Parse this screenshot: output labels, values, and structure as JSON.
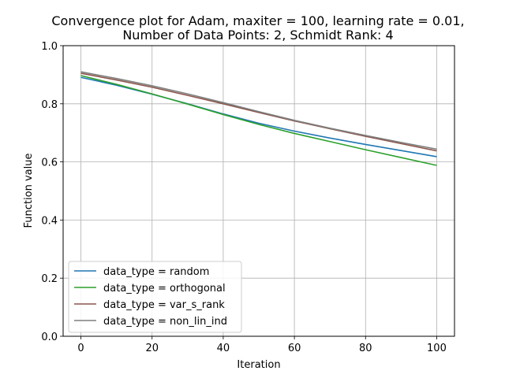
{
  "chart_data": {
    "type": "line",
    "title_line1": "Convergence plot for Adam, maxiter = 100, learning rate = 0.01,",
    "title_line2": "Number of Data Points: 2, Schmidt Rank: 4",
    "xlabel": "Iteration",
    "ylabel": "Function value",
    "xlim": [
      -5,
      105
    ],
    "ylim": [
      0,
      1
    ],
    "xticks": [
      0,
      20,
      40,
      60,
      80,
      100
    ],
    "yticks": [
      0.0,
      0.2,
      0.4,
      0.6,
      0.8,
      1.0
    ],
    "ytick_labels": [
      "0.0",
      "0.2",
      "0.4",
      "0.6",
      "0.8",
      "1.0"
    ],
    "grid": true,
    "legend_position": "lower-left",
    "x": [
      0,
      10,
      20,
      30,
      40,
      50,
      60,
      70,
      80,
      90,
      100
    ],
    "series": [
      {
        "name": "data_type = random",
        "color": "#1f77b4",
        "values": [
          0.891,
          0.864,
          0.833,
          0.8,
          0.765,
          0.733,
          0.706,
          0.682,
          0.66,
          0.639,
          0.618
        ]
      },
      {
        "name": "data_type = orthogonal",
        "color": "#2ca02c",
        "values": [
          0.897,
          0.867,
          0.834,
          0.799,
          0.763,
          0.729,
          0.698,
          0.67,
          0.642,
          0.615,
          0.588
        ]
      },
      {
        "name": "data_type = var_s_rank",
        "color": "#8c564b",
        "values": [
          0.905,
          0.882,
          0.857,
          0.829,
          0.8,
          0.77,
          0.741,
          0.714,
          0.688,
          0.663,
          0.638
        ]
      },
      {
        "name": "data_type = non_lin_ind",
        "color": "#7f7f7f",
        "values": [
          0.91,
          0.887,
          0.862,
          0.834,
          0.804,
          0.773,
          0.743,
          0.716,
          0.691,
          0.667,
          0.644
        ]
      }
    ]
  }
}
